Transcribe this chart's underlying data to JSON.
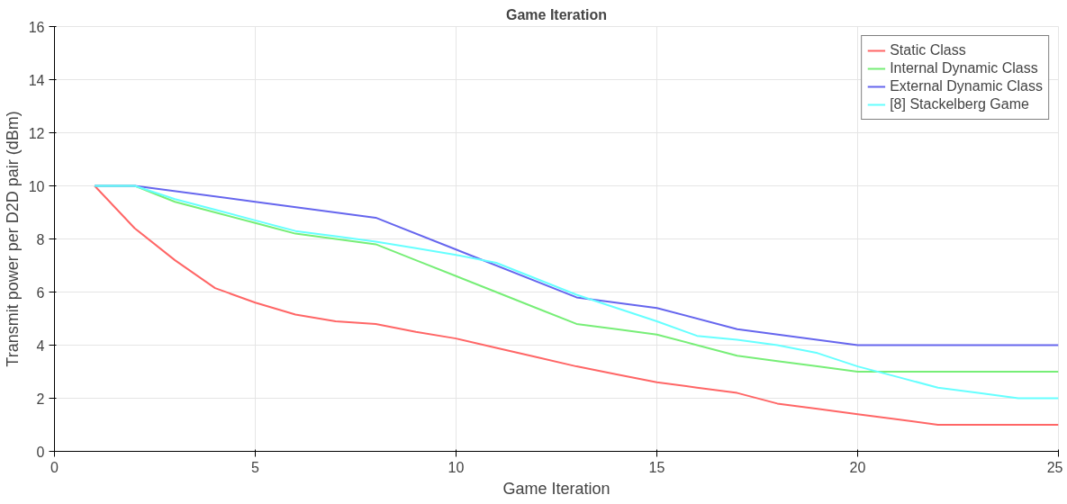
{
  "chart_data": {
    "type": "line",
    "title": "Game Iteration",
    "xlabel": "Game Iteration",
    "ylabel": "Transmit power per D2D pair (dBm)",
    "xlim": [
      0,
      25
    ],
    "ylim": [
      0,
      16
    ],
    "xticks": [
      0,
      5,
      10,
      15,
      20,
      25
    ],
    "yticks": [
      0,
      2,
      4,
      6,
      8,
      10,
      12,
      14,
      16
    ],
    "grid": true,
    "legend": "top right",
    "line_style": "solid",
    "series": [
      {
        "name": "Static Class",
        "color": "#ff6666",
        "x": [
          1,
          2,
          3,
          4,
          5,
          6,
          7,
          8,
          9,
          10,
          11,
          12,
          13,
          14,
          15,
          16,
          17,
          18,
          19,
          20,
          21,
          22,
          23,
          24,
          25
        ],
        "values": [
          10,
          8.4,
          7.2,
          6.15,
          5.6,
          5.15,
          4.9,
          4.8,
          4.5,
          4.25,
          3.9,
          3.55,
          3.2,
          2.9,
          2.6,
          2.4,
          2.2,
          1.8,
          1.6,
          1.4,
          1.2,
          1,
          1,
          1,
          1
        ]
      },
      {
        "name": "Internal Dynamic Class",
        "color": "#77ee77",
        "x": [
          1,
          2,
          3,
          4,
          5,
          6,
          7,
          8,
          9,
          10,
          11,
          12,
          13,
          14,
          15,
          16,
          17,
          18,
          19,
          20,
          21,
          22,
          23,
          24,
          25
        ],
        "values": [
          10,
          10,
          9.4,
          9,
          8.6,
          8.2,
          8,
          7.8,
          7.2,
          6.6,
          6,
          5.4,
          4.8,
          4.6,
          4.4,
          4,
          3.6,
          3.4,
          3.2,
          3,
          3,
          3,
          3,
          3,
          3
        ]
      },
      {
        "name": "External Dynamic Class",
        "color": "#6666ee",
        "x": [
          1,
          2,
          5,
          8,
          10,
          13,
          15,
          17,
          20,
          25
        ],
        "values": [
          10,
          10,
          9.4,
          8.8,
          7.6,
          5.8,
          5.4,
          4.6,
          4,
          4
        ]
      },
      {
        "name": "[8] Stackelberg Game",
        "color": "#66ffff",
        "x": [
          1,
          2,
          3,
          4,
          5,
          6,
          7,
          8,
          9,
          10,
          11,
          12,
          13,
          14,
          15,
          16,
          17,
          18,
          19,
          20,
          21,
          22,
          23,
          24,
          25
        ],
        "values": [
          10,
          10,
          9.5,
          9.1,
          8.7,
          8.3,
          8.1,
          7.9,
          7.65,
          7.4,
          7.1,
          6.5,
          5.9,
          5.4,
          4.9,
          4.35,
          4.2,
          4,
          3.7,
          3.2,
          2.8,
          2.4,
          2.2,
          2,
          2
        ]
      }
    ]
  }
}
